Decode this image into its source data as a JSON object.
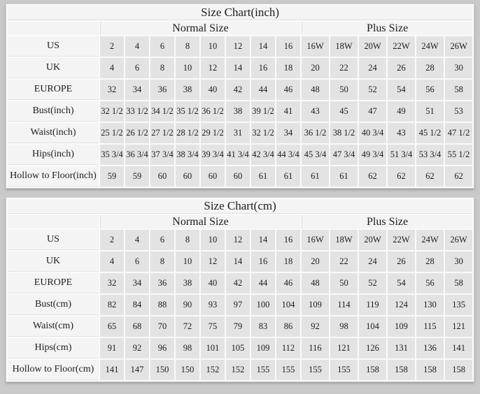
{
  "colors": {
    "page_background": "#c9c9c9",
    "table_background": "#fafafa",
    "header_cell_background": "#f4f4f4",
    "data_cell_background": "#e3e3e3",
    "text": "#1c1c1c"
  },
  "tables": [
    {
      "title": "Size Chart(inch)",
      "groups": [
        {
          "label": "Normal Size",
          "span": 8
        },
        {
          "label": "Plus Size",
          "span": 6
        }
      ],
      "rows": [
        {
          "label": "US",
          "values": [
            "2",
            "4",
            "6",
            "8",
            "10",
            "12",
            "14",
            "16",
            "16W",
            "18W",
            "20W",
            "22W",
            "24W",
            "26W"
          ]
        },
        {
          "label": "UK",
          "values": [
            "4",
            "6",
            "8",
            "10",
            "12",
            "14",
            "16",
            "18",
            "20",
            "22",
            "24",
            "26",
            "28",
            "30"
          ]
        },
        {
          "label": "EUROPE",
          "values": [
            "32",
            "34",
            "36",
            "38",
            "40",
            "42",
            "44",
            "46",
            "48",
            "50",
            "52",
            "54",
            "56",
            "58"
          ]
        },
        {
          "label": "Bust(inch)",
          "values": [
            "32 1/2",
            "33 1/2",
            "34 1/2",
            "35 1/2",
            "36 1/2",
            "38",
            "39 1/2",
            "41",
            "43",
            "45",
            "47",
            "49",
            "51",
            "53"
          ]
        },
        {
          "label": "Waist(inch)",
          "values": [
            "25 1/2",
            "26 1/2",
            "27 1/2",
            "28 1/2",
            "29 1/2",
            "31",
            "32 1/2",
            "34",
            "36 1/2",
            "38 1/2",
            "40 3/4",
            "43",
            "45 1/2",
            "47 1/2"
          ]
        },
        {
          "label": "Hips(inch)",
          "values": [
            "35 3/4",
            "36 3/4",
            "37 3/4",
            "38 3/4",
            "39 3/4",
            "41 3/4",
            "42 3/4",
            "44 3/4",
            "45 3/4",
            "47 3/4",
            "49 3/4",
            "51 3/4",
            "53 3/4",
            "55 1/2"
          ]
        },
        {
          "label": "Hollow to Floor(inch)",
          "values": [
            "59",
            "59",
            "60",
            "60",
            "60",
            "60",
            "61",
            "61",
            "61",
            "61",
            "62",
            "62",
            "62",
            "62"
          ]
        }
      ]
    },
    {
      "title": "Size Chart(cm)",
      "groups": [
        {
          "label": "Normal Size",
          "span": 8
        },
        {
          "label": "Plus Size",
          "span": 6
        }
      ],
      "rows": [
        {
          "label": "US",
          "values": [
            "2",
            "4",
            "6",
            "8",
            "10",
            "12",
            "14",
            "16",
            "16W",
            "18W",
            "20W",
            "22W",
            "24W",
            "26W"
          ]
        },
        {
          "label": "UK",
          "values": [
            "4",
            "6",
            "8",
            "10",
            "12",
            "14",
            "16",
            "18",
            "20",
            "22",
            "24",
            "26",
            "28",
            "30"
          ]
        },
        {
          "label": "EUROPE",
          "values": [
            "32",
            "34",
            "36",
            "38",
            "40",
            "42",
            "44",
            "46",
            "48",
            "50",
            "52",
            "54",
            "56",
            "58"
          ]
        },
        {
          "label": "Bust(cm)",
          "values": [
            "82",
            "84",
            "88",
            "90",
            "93",
            "97",
            "100",
            "104",
            "109",
            "114",
            "119",
            "124",
            "130",
            "135"
          ]
        },
        {
          "label": "Waist(cm)",
          "values": [
            "65",
            "68",
            "70",
            "72",
            "75",
            "79",
            "83",
            "86",
            "92",
            "98",
            "104",
            "109",
            "115",
            "121"
          ]
        },
        {
          "label": "Hips(cm)",
          "values": [
            "91",
            "92",
            "96",
            "98",
            "101",
            "105",
            "109",
            "112",
            "116",
            "121",
            "126",
            "131",
            "136",
            "141"
          ]
        },
        {
          "label": "Hollow to Floor(cm)",
          "values": [
            "141",
            "147",
            "150",
            "150",
            "152",
            "152",
            "155",
            "155",
            "155",
            "155",
            "158",
            "158",
            "158",
            "158"
          ]
        }
      ]
    }
  ]
}
